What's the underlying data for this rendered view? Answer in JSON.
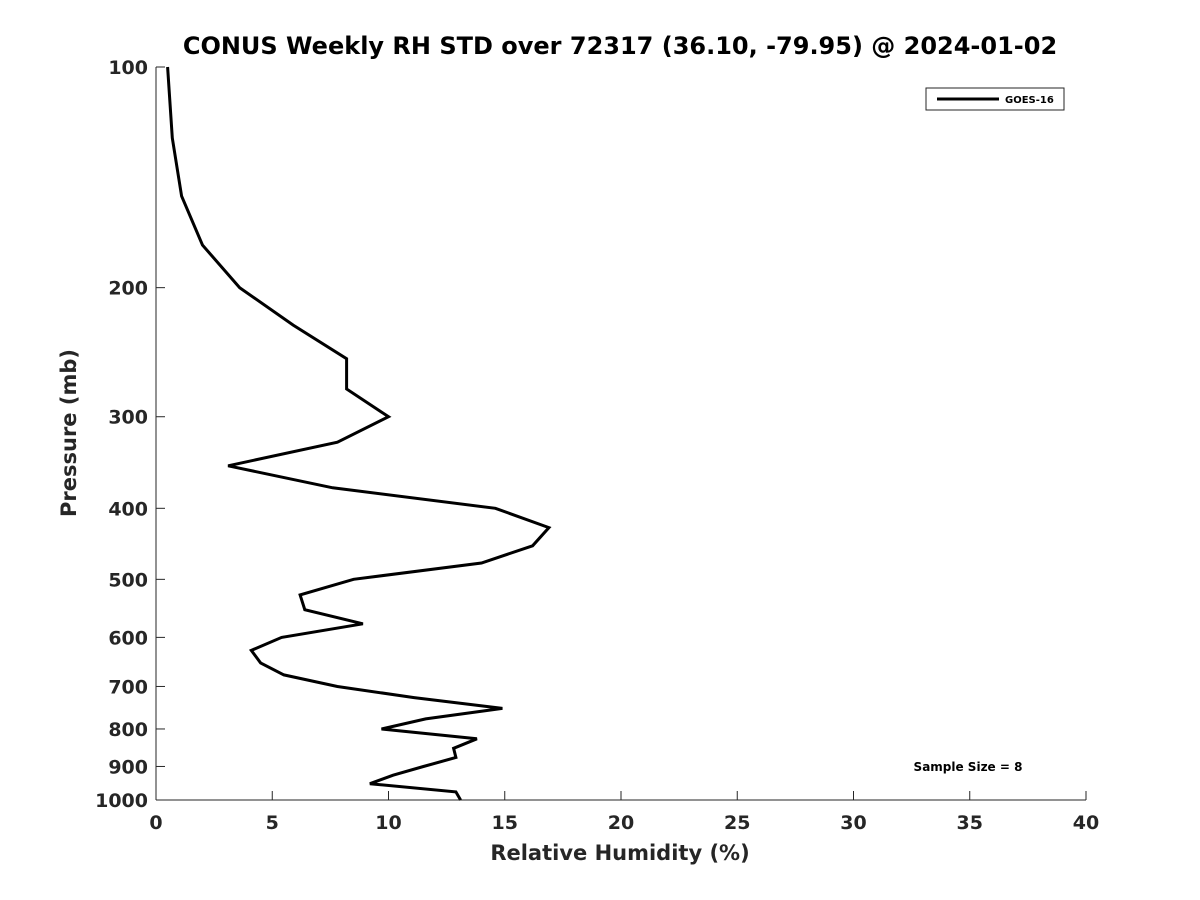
{
  "chart_data": {
    "type": "line",
    "title": "CONUS Weekly RH STD over 72317 (36.10, -79.95) @ 2024-01-02",
    "xlabel": "Relative Humidity (%)",
    "ylabel": "Pressure (mb)",
    "xlim": [
      0,
      40
    ],
    "ylim": [
      1000,
      100
    ],
    "y_scale": "log",
    "y_reversed": true,
    "x_ticks": [
      0,
      5,
      10,
      15,
      20,
      25,
      30,
      35,
      40
    ],
    "y_ticks": [
      100,
      200,
      300,
      400,
      500,
      600,
      700,
      800,
      900,
      1000
    ],
    "grid": false,
    "legend_position": "top-right",
    "annotation": "Sample Size = 8",
    "series": [
      {
        "name": "GOES-16",
        "color": "#000000",
        "points": [
          {
            "x": 0.5,
            "p": 100
          },
          {
            "x": 0.7,
            "p": 125
          },
          {
            "x": 1.1,
            "p": 150
          },
          {
            "x": 2.0,
            "p": 175
          },
          {
            "x": 3.6,
            "p": 200
          },
          {
            "x": 5.9,
            "p": 225
          },
          {
            "x": 8.2,
            "p": 250
          },
          {
            "x": 8.2,
            "p": 275
          },
          {
            "x": 10.0,
            "p": 300
          },
          {
            "x": 7.8,
            "p": 325
          },
          {
            "x": 3.1,
            "p": 350
          },
          {
            "x": 7.6,
            "p": 375
          },
          {
            "x": 14.6,
            "p": 400
          },
          {
            "x": 16.9,
            "p": 425
          },
          {
            "x": 16.2,
            "p": 450
          },
          {
            "x": 14.0,
            "p": 475
          },
          {
            "x": 8.5,
            "p": 500
          },
          {
            "x": 6.2,
            "p": 525
          },
          {
            "x": 6.4,
            "p": 550
          },
          {
            "x": 8.9,
            "p": 575
          },
          {
            "x": 5.4,
            "p": 600
          },
          {
            "x": 4.1,
            "p": 625
          },
          {
            "x": 4.5,
            "p": 650
          },
          {
            "x": 5.5,
            "p": 675
          },
          {
            "x": 7.8,
            "p": 700
          },
          {
            "x": 11.1,
            "p": 725
          },
          {
            "x": 14.9,
            "p": 750
          },
          {
            "x": 11.6,
            "p": 775
          },
          {
            "x": 9.7,
            "p": 800
          },
          {
            "x": 13.8,
            "p": 825
          },
          {
            "x": 12.8,
            "p": 850
          },
          {
            "x": 12.9,
            "p": 875
          },
          {
            "x": 11.5,
            "p": 900
          },
          {
            "x": 10.2,
            "p": 925
          },
          {
            "x": 9.2,
            "p": 950
          },
          {
            "x": 12.9,
            "p": 975
          },
          {
            "x": 13.1,
            "p": 1000
          }
        ]
      }
    ]
  }
}
